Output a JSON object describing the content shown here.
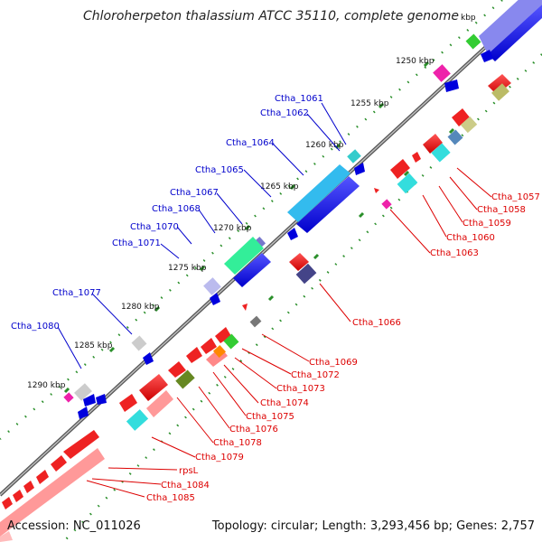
{
  "title": "Chloroherpeton thalassium ATCC 35110, complete genome",
  "footer": {
    "accession": "Accession: NC_011026",
    "summary": "Topology: circular; Length: 3,293,456 bp; Genes: 2,757"
  },
  "colors": {
    "backbone": "#8a8a8a",
    "dots": "#2a8f2a",
    "label_forward": "#0000cc",
    "label_reverse": "#dd0000"
  },
  "ticks": [
    "kbp",
    "1250 kbp",
    "1255 kbp",
    "1260 kbp",
    "1265 kbp",
    "1270 kbp",
    "1275 kbp",
    "1280 kbp",
    "1285 kbp",
    "1290 kbp"
  ],
  "labels_forward": [
    "Ctha_1061",
    "Ctha_1062",
    "Ctha_1064",
    "Ctha_1065",
    "Ctha_1067",
    "Ctha_1068",
    "Ctha_1070",
    "Ctha_1071",
    "Ctha_1077",
    "Ctha_1080"
  ],
  "labels_reverse": [
    "Ctha_1057",
    "Ctha_1058",
    "Ctha_1059",
    "Ctha_1060",
    "Ctha_1063",
    "Ctha_1066",
    "Ctha_1069",
    "Ctha_1072",
    "Ctha_1073",
    "Ctha_1074",
    "Ctha_1075",
    "Ctha_1076",
    "Ctha_1078",
    "Ctha_1079",
    "rpsL",
    "Ctha_1084",
    "Ctha_1085"
  ]
}
